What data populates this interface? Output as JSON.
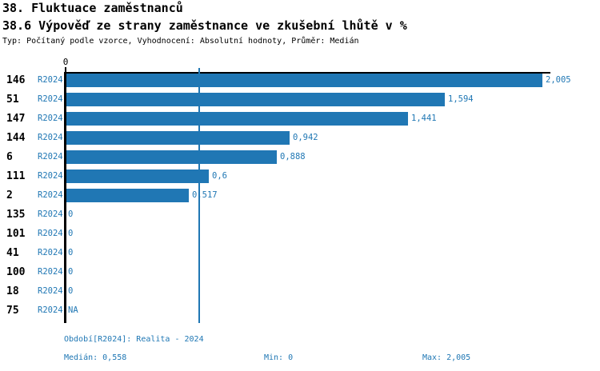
{
  "header": {
    "title": "38. Fluktuace zaměstnanců",
    "subtitle": "38.6 Výpověď ze strany zaměstnance ve zkušební lhůtě v %",
    "meta": "Typ: Počítaný podle vzorce, Vyhodnocení: Absolutní hodnoty, Průměr: Medián"
  },
  "chart_data": {
    "type": "bar",
    "orientation": "horizontal",
    "title": "38.6 Výpověď ze strany zaměstnance ve zkušební lhůtě v %",
    "xlabel": "",
    "ylabel": "",
    "axis": {
      "xmin": 0,
      "xmax": 2.04,
      "tick_zero_label": "0",
      "grid": false
    },
    "series_label": "R2024",
    "categories": [
      "146",
      "51",
      "147",
      "144",
      "6",
      "111",
      "2",
      "135",
      "101",
      "41",
      "100",
      "18",
      "75"
    ],
    "values": [
      2.005,
      1.594,
      1.441,
      0.942,
      0.888,
      0.6,
      0.517,
      0,
      0,
      0,
      0,
      0,
      null
    ],
    "value_labels": [
      "2,005",
      "1,594",
      "1,441",
      "0,942",
      "0,888",
      "0,6",
      "0,517",
      "0",
      "0",
      "0",
      "0",
      "0",
      "NA"
    ],
    "median_value": 0.558,
    "median_label": "0,558",
    "colors": {
      "bar": "#2077b4",
      "label_text": "#1f77b4",
      "median_line": "#2077b4",
      "axis": "#000000"
    }
  },
  "footer": {
    "period": "Období[R2024]: Realita - 2024",
    "median": "Medián: 0,558",
    "min": "Min: 0",
    "max": "Max: 2,005"
  }
}
